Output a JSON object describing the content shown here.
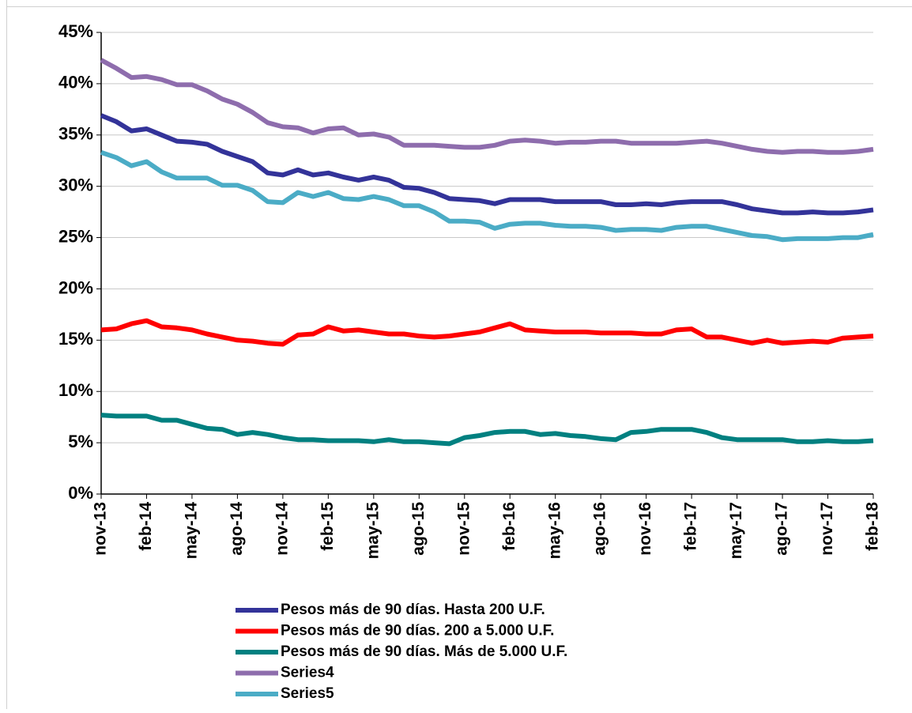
{
  "chart_data": {
    "type": "line",
    "categories": [
      "nov-13",
      null,
      null,
      "feb-14",
      null,
      null,
      "may-14",
      null,
      null,
      "ago-14",
      null,
      null,
      "nov-14",
      null,
      null,
      "feb-15",
      null,
      null,
      "may-15",
      null,
      null,
      "ago-15",
      null,
      null,
      "nov-15",
      null,
      null,
      "feb-16",
      null,
      null,
      "may-16",
      null,
      null,
      "ago-16",
      null,
      null,
      "nov-16",
      null,
      null,
      "feb-17",
      null,
      null,
      "may-17",
      null,
      null,
      "ago-17",
      null,
      null,
      "nov-17",
      null,
      null,
      "feb-18"
    ],
    "series": [
      {
        "name": "Pesos más de 90 días. Hasta 200 U.F.",
        "color": "#333399",
        "values": [
          36.9,
          36.3,
          35.4,
          35.6,
          35.0,
          34.4,
          34.3,
          34.1,
          33.4,
          32.9,
          32.4,
          31.3,
          31.1,
          31.6,
          31.1,
          31.3,
          30.9,
          30.6,
          30.9,
          30.6,
          29.9,
          29.8,
          29.4,
          28.8,
          28.7,
          28.6,
          28.3,
          28.7,
          28.7,
          28.7,
          28.5,
          28.5,
          28.5,
          28.5,
          28.2,
          28.2,
          28.3,
          28.2,
          28.4,
          28.5,
          28.5,
          28.5,
          28.2,
          27.8,
          27.6,
          27.4,
          27.4,
          27.5,
          27.4,
          27.4,
          27.5,
          27.7
        ]
      },
      {
        "name": "Pesos más de 90 días. 200 a 5.000 U.F.",
        "color": "#ff0000",
        "values": [
          16.0,
          16.1,
          16.6,
          16.9,
          16.3,
          16.2,
          16.0,
          15.6,
          15.3,
          15.0,
          14.9,
          14.7,
          14.6,
          15.5,
          15.6,
          16.3,
          15.9,
          16.0,
          15.8,
          15.6,
          15.6,
          15.4,
          15.3,
          15.4,
          15.6,
          15.8,
          16.2,
          16.6,
          16.0,
          15.9,
          15.8,
          15.8,
          15.8,
          15.7,
          15.7,
          15.7,
          15.6,
          15.6,
          16.0,
          16.1,
          15.3,
          15.3,
          15.0,
          14.7,
          15.0,
          14.7,
          14.8,
          14.9,
          14.8,
          15.2,
          15.3,
          15.4
        ]
      },
      {
        "name": "Pesos más de 90 días. Más de 5.000 U.F.",
        "color": "#008080",
        "values": [
          7.7,
          7.6,
          7.6,
          7.6,
          7.2,
          7.2,
          6.8,
          6.4,
          6.3,
          5.8,
          6.0,
          5.8,
          5.5,
          5.3,
          5.3,
          5.2,
          5.2,
          5.2,
          5.1,
          5.3,
          5.1,
          5.1,
          5.0,
          4.9,
          5.5,
          5.7,
          6.0,
          6.1,
          6.1,
          5.8,
          5.9,
          5.7,
          5.6,
          5.4,
          5.3,
          6.0,
          6.1,
          6.3,
          6.3,
          6.3,
          6.0,
          5.5,
          5.3,
          5.3,
          5.3,
          5.3,
          5.1,
          5.1,
          5.2,
          5.1,
          5.1,
          5.2
        ]
      },
      {
        "name": "Series4",
        "color": "#8e6dad",
        "values": [
          42.3,
          41.5,
          40.6,
          40.7,
          40.4,
          39.9,
          39.9,
          39.3,
          38.5,
          38.0,
          37.2,
          36.2,
          35.8,
          35.7,
          35.2,
          35.6,
          35.7,
          35.0,
          35.1,
          34.8,
          34.0,
          34.0,
          34.0,
          33.9,
          33.8,
          33.8,
          34.0,
          34.4,
          34.5,
          34.4,
          34.2,
          34.3,
          34.3,
          34.4,
          34.4,
          34.2,
          34.2,
          34.2,
          34.2,
          34.3,
          34.4,
          34.2,
          33.9,
          33.6,
          33.4,
          33.3,
          33.4,
          33.4,
          33.3,
          33.3,
          33.4,
          33.6
        ]
      },
      {
        "name": "Series5",
        "color": "#4bacc6",
        "values": [
          33.3,
          32.8,
          32.0,
          32.4,
          31.4,
          30.8,
          30.8,
          30.8,
          30.1,
          30.1,
          29.6,
          28.5,
          28.4,
          29.4,
          29.0,
          29.4,
          28.8,
          28.7,
          29.0,
          28.7,
          28.1,
          28.1,
          27.5,
          26.6,
          26.6,
          26.5,
          25.9,
          26.3,
          26.4,
          26.4,
          26.2,
          26.1,
          26.1,
          26.0,
          25.7,
          25.8,
          25.8,
          25.7,
          26.0,
          26.1,
          26.1,
          25.8,
          25.5,
          25.2,
          25.1,
          24.8,
          24.9,
          24.9,
          24.9,
          25.0,
          25.0,
          25.3
        ]
      }
    ],
    "ylim": [
      0,
      45
    ],
    "yticks": [
      {
        "value": 0,
        "label": "0%"
      },
      {
        "value": 5,
        "label": "5%"
      },
      {
        "value": 10,
        "label": "10%"
      },
      {
        "value": 15,
        "label": "15%"
      },
      {
        "value": 20,
        "label": "20%"
      },
      {
        "value": 25,
        "label": "25%"
      },
      {
        "value": 30,
        "label": "30%"
      },
      {
        "value": 35,
        "label": "35%"
      },
      {
        "value": 40,
        "label": "40%"
      },
      {
        "value": 45,
        "label": "45%"
      }
    ],
    "grid": true
  }
}
